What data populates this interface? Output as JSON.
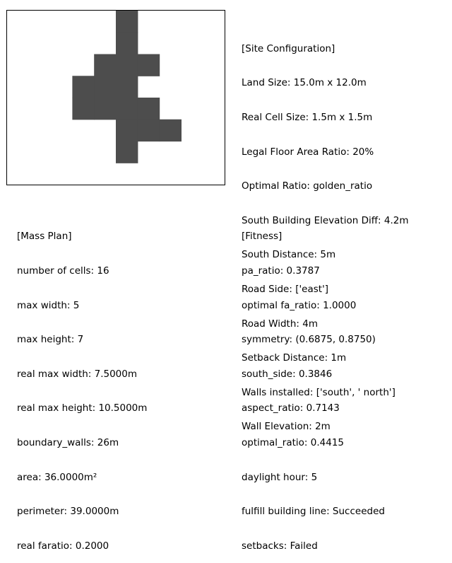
{
  "mass_grid": {
    "columns": 10,
    "rows": 8,
    "cell_color": "#4d4d4d",
    "occupied_cells": [
      [
        0,
        5
      ],
      [
        1,
        5
      ],
      [
        2,
        4
      ],
      [
        2,
        5
      ],
      [
        2,
        6
      ],
      [
        3,
        3
      ],
      [
        3,
        4
      ],
      [
        3,
        5
      ],
      [
        4,
        3
      ],
      [
        4,
        4
      ],
      [
        4,
        5
      ],
      [
        4,
        6
      ],
      [
        5,
        5
      ],
      [
        5,
        6
      ],
      [
        5,
        7
      ],
      [
        6,
        5
      ]
    ]
  },
  "site_configuration": {
    "title": "[Site Configuration]",
    "lines": [
      "Land Size: 15.0m x 12.0m",
      "Real Cell Size: 1.5m x 1.5m",
      "Legal Floor Area Ratio: 20%",
      "Optimal Ratio: golden_ratio",
      "South Building Elevation Diff: 4.2m",
      "South Distance: 5m",
      "Road Side: ['east']",
      "Road Width: 4m",
      "Setback Distance: 1m",
      "Walls installed: ['south', ' north']",
      "Wall Elevation: 2m"
    ]
  },
  "mass_plan": {
    "lines": [
      "[Mass Plan]",
      "number of cells: 16",
      "max width: 5",
      "max height: 7",
      "real max width: 7.5000m",
      "real max height: 10.5000m",
      "boundary_walls: 26m",
      "area: 36.0000m²",
      "perimeter: 39.0000m",
      "real faratio: 0.2000"
    ]
  },
  "fitness": {
    "lines": [
      "[Fitness]",
      "pa_ratio: 0.3787",
      "optimal fa_ratio: 1.0000",
      "symmetry: (0.6875, 0.8750)",
      "south_side: 0.3846",
      "aspect_ratio: 0.7143",
      "optimal_ratio: 0.4415",
      "daylight hour: 5",
      "fulfill building line: Succeeded",
      "setbacks: Failed"
    ]
  }
}
